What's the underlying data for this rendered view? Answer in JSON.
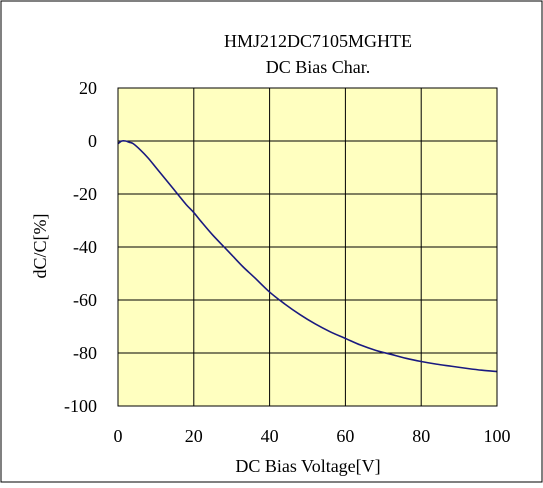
{
  "chart_data": {
    "type": "line",
    "title": "HMJ212DC7105MGHTE",
    "subtitle": "DC Bias Char.",
    "xlabel": "DC Bias Voltage[V]",
    "ylabel": "dC/C[%]",
    "xlim": [
      0,
      100
    ],
    "ylim": [
      -100,
      20
    ],
    "x_ticks": [
      0,
      20,
      40,
      60,
      80,
      100
    ],
    "y_ticks": [
      20,
      0,
      -20,
      -40,
      -60,
      -80,
      -100
    ],
    "x_tick_labels": [
      "0",
      "20",
      "40",
      "60",
      "80",
      "100"
    ],
    "y_tick_labels": [
      "20",
      "0",
      "-20",
      "-40",
      "-60",
      "-80",
      "-100"
    ],
    "grid": true,
    "series": [
      {
        "color": "#1a1a80",
        "x": [
          0,
          1,
          2,
          3,
          4,
          6,
          8,
          10,
          12,
          14,
          16,
          18,
          20,
          22,
          25,
          28,
          30,
          33,
          36,
          40,
          44,
          48,
          52,
          56,
          60,
          64,
          68,
          72,
          76,
          80,
          84,
          88,
          92,
          96,
          100
        ],
        "y": [
          -1,
          0,
          0,
          -0.5,
          -1,
          -3.5,
          -6.5,
          -10,
          -13.5,
          -17,
          -20.5,
          -24,
          -27,
          -30.5,
          -35.5,
          -40,
          -43,
          -47.5,
          -51.5,
          -57,
          -61.5,
          -65.5,
          -69,
          -72,
          -74.5,
          -77,
          -79,
          -80.5,
          -82,
          -83.2,
          -84.2,
          -85,
          -85.8,
          -86.5,
          -87
        ]
      }
    ]
  },
  "colors": {
    "plot_background": "#ffffc0",
    "grid": "#000000",
    "frame": "#000000"
  }
}
